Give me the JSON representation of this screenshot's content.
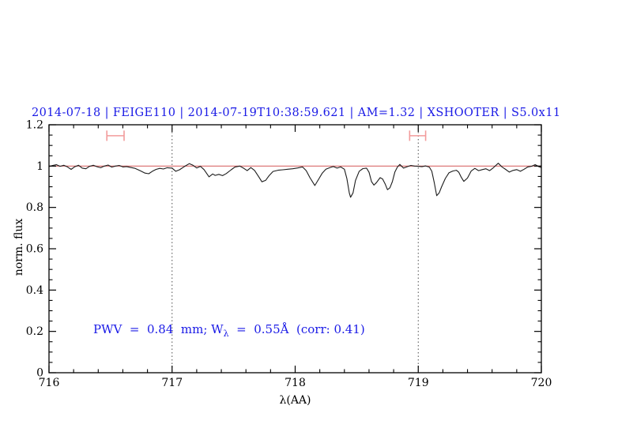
{
  "page": {
    "background": "#ffffff"
  },
  "chart_data": {
    "type": "line",
    "title": "2014-07-18 | FEIGE110 | 2014-07-19T10:38:59.621 | AM=1.32 | XSHOOTER | S5.0x11",
    "title_color": "#1a1ae6",
    "xlabel": "λ(AA)",
    "ylabel": "norm. flux",
    "xlim": [
      716,
      720
    ],
    "ylim": [
      0,
      1.2
    ],
    "grid": false,
    "legend": "none",
    "x_major_ticks": {
      "values": [
        716,
        717,
        718,
        719,
        720
      ],
      "labels": [
        "716",
        "717",
        "718",
        "719",
        "720"
      ]
    },
    "y_major_ticks": {
      "values": [
        0,
        0.2,
        0.4,
        0.6,
        0.8,
        1,
        1.2
      ],
      "labels": [
        "0",
        "0.2",
        "0.4",
        "0.6",
        "0.8",
        "1",
        "1.2"
      ]
    },
    "x_minor_step": 0.2,
    "y_minor_step": 0.05,
    "dotted_vlines": [
      717,
      719
    ],
    "continuum": {
      "y": 1.0,
      "color": "#d96a6a"
    },
    "band_markers": {
      "color": "#f29b9b",
      "items": [
        {
          "x1": 716.47,
          "x2": 716.61,
          "y": 1.147,
          "cap_top": 1.172,
          "cap_bottom": 1.122
        },
        {
          "x1": 718.93,
          "x2": 719.06,
          "y": 1.147,
          "cap_top": 1.172,
          "cap_bottom": 1.122
        }
      ]
    },
    "annotation": {
      "prefix": "PWV  =  0.84  mm; W",
      "sub": "λ",
      "suffix": "  =  0.55Å  (corr: 0.41)",
      "color": "#1a1ae6"
    },
    "series": [
      {
        "name": "normalized-spectrum",
        "color": "#1c1c1c",
        "x": [
          716.0,
          716.03,
          716.06,
          716.09,
          716.12,
          716.15,
          716.18,
          716.21,
          716.24,
          716.27,
          716.3,
          716.33,
          716.36,
          716.39,
          716.42,
          716.45,
          716.48,
          716.51,
          716.54,
          716.57,
          716.6,
          716.63,
          716.66,
          716.7,
          716.74,
          716.78,
          716.81,
          716.84,
          716.87,
          716.9,
          716.93,
          716.96,
          717.0,
          717.03,
          717.06,
          717.1,
          717.14,
          717.17,
          717.2,
          717.23,
          717.26,
          717.3,
          717.33,
          717.35,
          717.38,
          717.41,
          717.44,
          717.48,
          717.51,
          717.55,
          717.58,
          717.61,
          717.64,
          717.67,
          717.7,
          717.73,
          717.76,
          717.79,
          717.82,
          717.86,
          717.9,
          717.94,
          717.98,
          718.02,
          718.06,
          718.09,
          718.12,
          718.16,
          718.19,
          718.22,
          718.25,
          718.28,
          718.31,
          718.34,
          718.37,
          718.4,
          718.42,
          718.44,
          718.45,
          718.47,
          718.49,
          718.52,
          718.55,
          718.58,
          718.6,
          718.62,
          718.64,
          718.66,
          718.69,
          718.71,
          718.73,
          718.75,
          718.77,
          718.79,
          718.81,
          718.83,
          718.85,
          718.88,
          718.91,
          718.94,
          718.97,
          719.0,
          719.03,
          719.06,
          719.09,
          719.11,
          719.13,
          719.15,
          719.17,
          719.19,
          719.22,
          719.25,
          719.28,
          719.31,
          719.33,
          719.35,
          719.37,
          719.4,
          719.43,
          719.46,
          719.49,
          719.52,
          719.55,
          719.58,
          719.61,
          719.65,
          719.68,
          719.71,
          719.74,
          719.77,
          719.8,
          719.83,
          719.86,
          719.89,
          719.92,
          719.95,
          719.98,
          720.0
        ],
        "y": [
          0.998,
          1.003,
          1.007,
          0.999,
          1.004,
          0.996,
          0.984,
          0.997,
          1.004,
          0.99,
          0.987,
          0.999,
          1.004,
          0.997,
          0.992,
          1.0,
          1.005,
          0.995,
          1.0,
          1.003,
          0.996,
          0.998,
          0.994,
          0.989,
          0.978,
          0.966,
          0.963,
          0.975,
          0.984,
          0.989,
          0.986,
          0.992,
          0.99,
          0.975,
          0.982,
          0.998,
          1.012,
          1.004,
          0.991,
          0.999,
          0.983,
          0.948,
          0.962,
          0.955,
          0.96,
          0.954,
          0.964,
          0.982,
          0.995,
          1.0,
          0.99,
          0.978,
          0.993,
          0.979,
          0.952,
          0.924,
          0.931,
          0.955,
          0.974,
          0.98,
          0.982,
          0.985,
          0.987,
          0.991,
          0.996,
          0.978,
          0.944,
          0.906,
          0.936,
          0.966,
          0.985,
          0.992,
          0.998,
          0.99,
          0.996,
          0.985,
          0.94,
          0.87,
          0.849,
          0.87,
          0.93,
          0.975,
          0.988,
          0.99,
          0.97,
          0.925,
          0.908,
          0.92,
          0.944,
          0.938,
          0.915,
          0.886,
          0.895,
          0.925,
          0.972,
          0.995,
          1.008,
          0.99,
          0.997,
          1.003,
          1.0,
          0.999,
          0.997,
          1.001,
          0.995,
          0.975,
          0.92,
          0.857,
          0.87,
          0.9,
          0.94,
          0.968,
          0.976,
          0.98,
          0.97,
          0.945,
          0.926,
          0.942,
          0.976,
          0.989,
          0.978,
          0.983,
          0.987,
          0.978,
          0.992,
          1.014,
          0.996,
          0.984,
          0.971,
          0.979,
          0.983,
          0.975,
          0.985,
          0.996,
          0.999,
          1.007,
          0.997,
          0.993
        ]
      }
    ]
  }
}
